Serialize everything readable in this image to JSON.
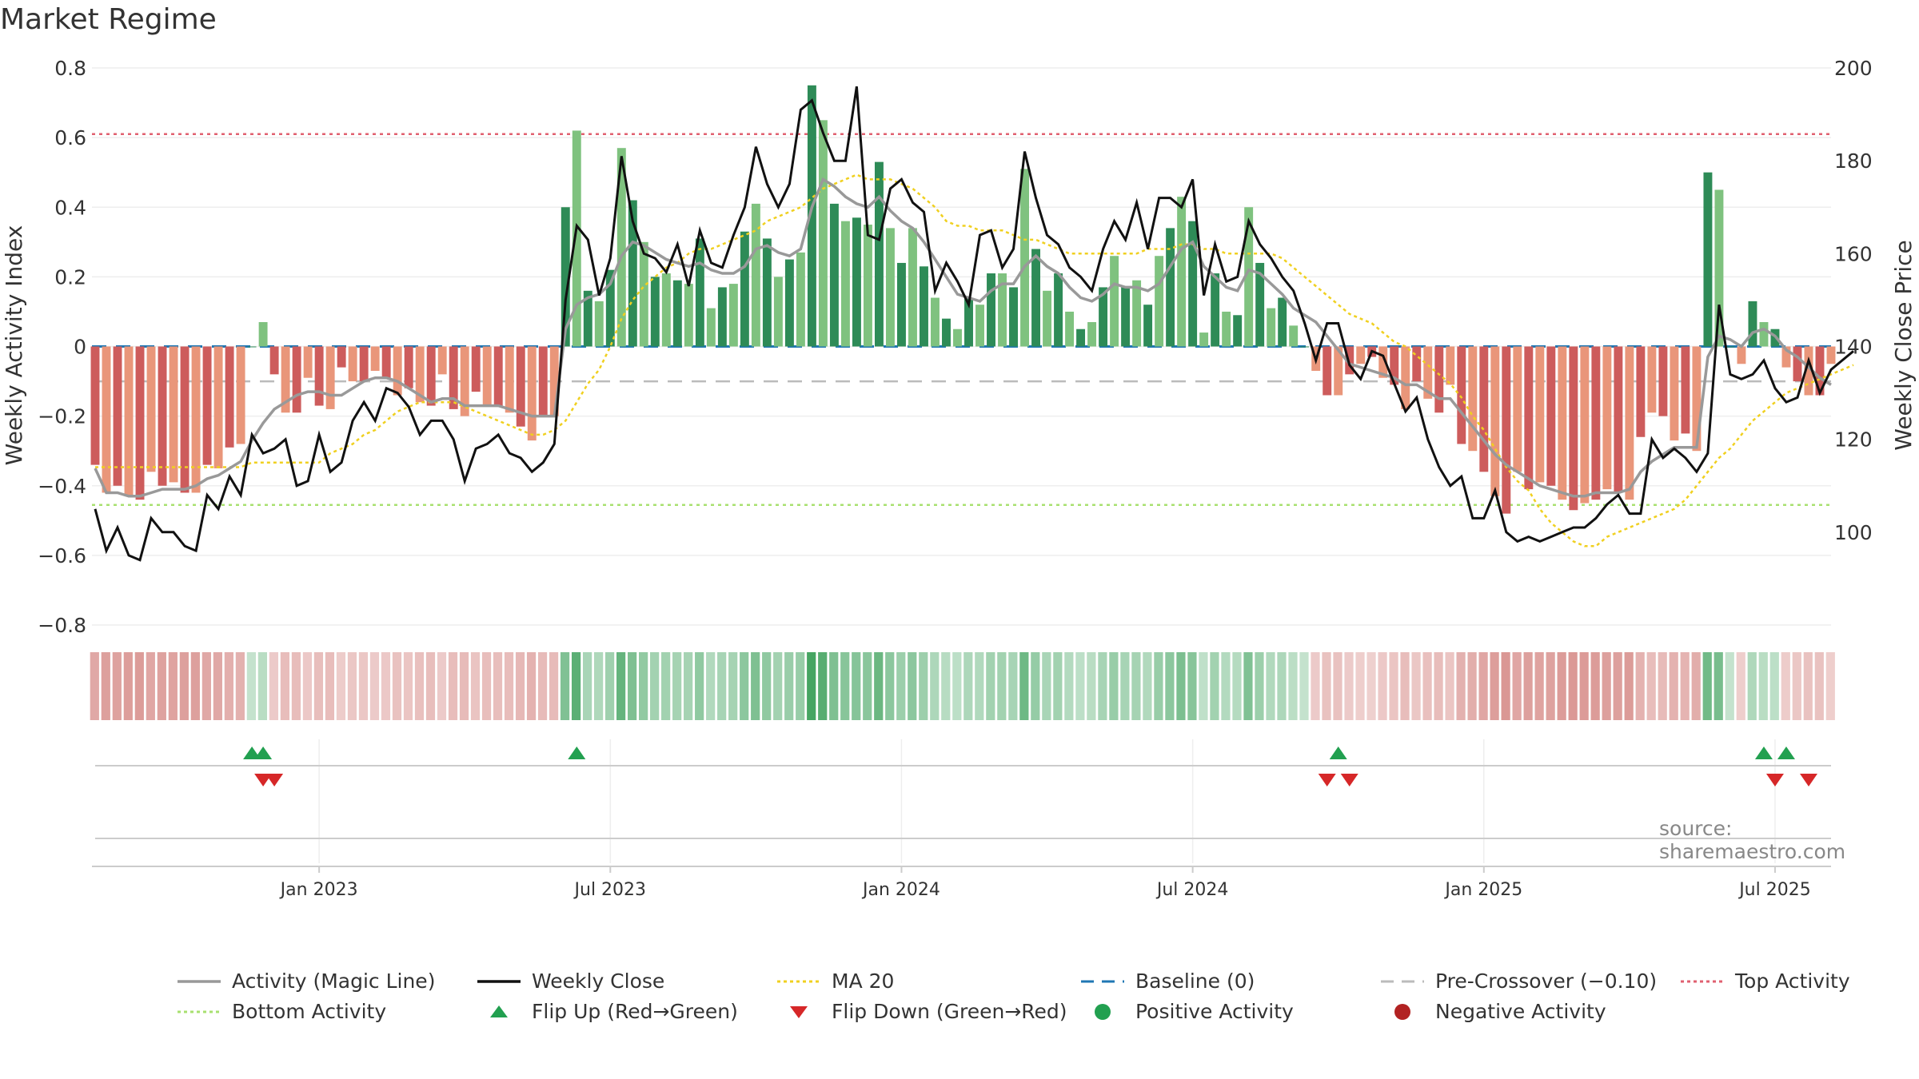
{
  "title": "Market Regime",
  "source": "source: sharemaestro.com",
  "colors": {
    "bar_dark_green": "#2e8b57",
    "bar_light_green": "#7fc27f",
    "bar_dark_red": "#cd5c5c",
    "bar_light_red": "#e9967a",
    "close_line": "#111111",
    "magic_line": "#999999",
    "ma20": "#f0d020",
    "baseline": "#1f77b4",
    "pre_crossover": "#bbbbbb",
    "top_activity": "#e06070",
    "bottom_activity": "#a8e070",
    "flip_up": "#22a050",
    "flip_down": "#d62728"
  },
  "legend": [
    {
      "label": "Activity (Magic Line)",
      "kind": "line",
      "color": "#999999"
    },
    {
      "label": "Weekly Close",
      "kind": "line",
      "color": "#111111"
    },
    {
      "label": "MA 20",
      "kind": "dotted",
      "color": "#f0d020"
    },
    {
      "label": "Baseline (0)",
      "kind": "dashed",
      "color": "#1f77b4"
    },
    {
      "label": "Pre-Crossover (−0.10)",
      "kind": "dashed",
      "color": "#bbbbbb"
    },
    {
      "label": "Top Activity",
      "kind": "dotted",
      "color": "#e06070"
    },
    {
      "label": "Bottom Activity",
      "kind": "dotted",
      "color": "#a8e070"
    },
    {
      "label": "Flip Up (Red→Green)",
      "kind": "tri-up",
      "color": "#22a050"
    },
    {
      "label": "Flip Down (Green→Red)",
      "kind": "tri-down",
      "color": "#d62728"
    },
    {
      "label": "Positive Activity",
      "kind": "dot",
      "color": "#22a050"
    },
    {
      "label": "Negative Activity",
      "kind": "dot",
      "color": "#b22222"
    }
  ],
  "chart_data": {
    "type": "bar",
    "ylabel_left": "Weekly Activity Index",
    "ylabel_right": "Weekly Close Price",
    "ylim_left": [
      -0.8,
      0.8
    ],
    "ylim_right": [
      80,
      200
    ],
    "left_ticks": [
      "0.8",
      "0.6",
      "0.4",
      "0.2",
      "0",
      "−0.2",
      "−0.4",
      "−0.6",
      "−0.8"
    ],
    "right_ticks": [
      "200",
      "180",
      "160",
      "140",
      "120",
      "100"
    ],
    "x_tick_labels": [
      "Jan 2023",
      "Jul 2023",
      "Jan 2024",
      "Jul 2024",
      "Jan 2025",
      "Jul 2025"
    ],
    "x_tick_week_index": [
      20,
      46,
      72,
      98,
      124,
      150
    ],
    "reference_lines": {
      "baseline": 0,
      "pre_crossover": -0.1,
      "top_activity": 0.61,
      "bottom_activity": -0.455
    },
    "activity": [
      -0.34,
      -0.42,
      -0.4,
      -0.43,
      -0.44,
      -0.36,
      -0.4,
      -0.39,
      -0.42,
      -0.42,
      -0.34,
      -0.35,
      -0.29,
      -0.28,
      0.0,
      0.07,
      -0.08,
      -0.19,
      -0.19,
      -0.09,
      -0.17,
      -0.18,
      -0.06,
      -0.1,
      -0.1,
      -0.07,
      -0.09,
      -0.14,
      -0.12,
      -0.16,
      -0.17,
      -0.08,
      -0.18,
      -0.2,
      -0.13,
      -0.17,
      -0.17,
      -0.19,
      -0.23,
      -0.27,
      -0.2,
      -0.2,
      0.4,
      0.62,
      0.16,
      0.13,
      0.22,
      0.57,
      0.42,
      0.3,
      0.2,
      0.21,
      0.19,
      0.18,
      0.31,
      0.11,
      0.17,
      0.18,
      0.33,
      0.41,
      0.31,
      0.2,
      0.25,
      0.27,
      0.75,
      0.65,
      0.41,
      0.36,
      0.37,
      0.35,
      0.53,
      0.34,
      0.24,
      0.34,
      0.23,
      0.14,
      0.08,
      0.05,
      0.14,
      0.12,
      0.21,
      0.21,
      0.17,
      0.51,
      0.28,
      0.16,
      0.21,
      0.1,
      0.05,
      0.07,
      0.17,
      0.26,
      0.17,
      0.19,
      0.12,
      0.26,
      0.34,
      0.43,
      0.36,
      0.04,
      0.21,
      0.1,
      0.09,
      0.4,
      0.24,
      0.11,
      0.14,
      0.06,
      0.0,
      -0.07,
      -0.14,
      -0.14,
      -0.08,
      -0.05,
      -0.03,
      -0.09,
      -0.11,
      -0.18,
      -0.1,
      -0.15,
      -0.19,
      -0.11,
      -0.28,
      -0.3,
      -0.36,
      -0.43,
      -0.48,
      -0.36,
      -0.41,
      -0.39,
      -0.4,
      -0.44,
      -0.47,
      -0.45,
      -0.44,
      -0.41,
      -0.42,
      -0.44,
      -0.26,
      -0.19,
      -0.2,
      -0.27,
      -0.25,
      -0.3,
      0.5,
      0.45,
      0.0,
      -0.05,
      0.13,
      0.07,
      0.05,
      -0.06,
      -0.1,
      -0.14,
      -0.14,
      -0.05
    ],
    "magic_line": [
      -0.35,
      -0.42,
      -0.42,
      -0.43,
      -0.43,
      -0.42,
      -0.41,
      -0.41,
      -0.41,
      -0.4,
      -0.38,
      -0.37,
      -0.35,
      -0.33,
      -0.27,
      -0.22,
      -0.18,
      -0.16,
      -0.14,
      -0.13,
      -0.13,
      -0.14,
      -0.14,
      -0.12,
      -0.1,
      -0.09,
      -0.09,
      -0.1,
      -0.12,
      -0.14,
      -0.16,
      -0.15,
      -0.15,
      -0.17,
      -0.17,
      -0.17,
      -0.17,
      -0.18,
      -0.19,
      -0.2,
      -0.2,
      -0.2,
      0.05,
      0.12,
      0.14,
      0.15,
      0.18,
      0.26,
      0.3,
      0.29,
      0.27,
      0.25,
      0.24,
      0.23,
      0.24,
      0.22,
      0.21,
      0.21,
      0.23,
      0.28,
      0.29,
      0.27,
      0.26,
      0.28,
      0.4,
      0.48,
      0.46,
      0.43,
      0.41,
      0.4,
      0.43,
      0.39,
      0.36,
      0.34,
      0.3,
      0.25,
      0.2,
      0.15,
      0.14,
      0.13,
      0.16,
      0.18,
      0.18,
      0.23,
      0.26,
      0.23,
      0.21,
      0.17,
      0.14,
      0.13,
      0.15,
      0.18,
      0.17,
      0.17,
      0.16,
      0.18,
      0.23,
      0.28,
      0.3,
      0.23,
      0.2,
      0.17,
      0.16,
      0.22,
      0.21,
      0.18,
      0.15,
      0.11,
      0.09,
      0.07,
      0.03,
      -0.01,
      -0.05,
      -0.06,
      -0.07,
      -0.08,
      -0.09,
      -0.11,
      -0.11,
      -0.13,
      -0.15,
      -0.15,
      -0.19,
      -0.23,
      -0.27,
      -0.31,
      -0.34,
      -0.36,
      -0.38,
      -0.4,
      -0.41,
      -0.42,
      -0.43,
      -0.43,
      -0.42,
      -0.42,
      -0.42,
      -0.41,
      -0.36,
      -0.33,
      -0.31,
      -0.29,
      -0.29,
      -0.29,
      -0.03,
      0.03,
      0.02,
      0.0,
      0.04,
      0.05,
      0.03,
      -0.01,
      -0.03,
      -0.06,
      -0.09,
      -0.11
    ],
    "weekly_close": [
      105,
      96,
      101,
      95,
      94,
      103,
      100,
      100,
      97,
      96,
      108,
      105,
      112,
      108,
      121,
      117,
      118,
      120,
      110,
      111,
      121,
      113,
      115,
      124,
      128,
      124,
      131,
      130,
      127,
      121,
      124,
      124,
      120,
      111,
      118,
      119,
      121,
      117,
      116,
      113,
      115,
      119,
      150,
      166,
      163,
      151,
      159,
      181,
      167,
      160,
      159,
      156,
      162,
      153,
      165,
      158,
      157,
      164,
      170,
      183,
      175,
      170,
      175,
      191,
      193,
      186,
      180,
      180,
      196,
      164,
      163,
      174,
      176,
      171,
      169,
      152,
      158,
      154,
      149,
      164,
      165,
      157,
      161,
      182,
      172,
      164,
      162,
      157,
      155,
      152,
      161,
      167,
      163,
      171,
      161,
      172,
      172,
      170,
      176,
      151,
      162,
      154,
      155,
      167,
      162,
      159,
      155,
      152,
      145,
      137,
      145,
      145,
      136,
      133,
      139,
      138,
      132,
      126,
      129,
      120,
      114,
      110,
      112,
      103,
      103,
      109,
      100,
      98,
      99,
      98,
      99,
      100,
      101,
      101,
      103,
      106,
      108,
      104,
      104,
      120,
      116,
      118,
      116,
      113,
      117,
      149,
      134,
      133,
      134,
      137,
      131,
      128,
      129,
      137,
      130,
      135,
      137,
      139
    ],
    "ma20": [
      114,
      114,
      114,
      114,
      114,
      114,
      114,
      114,
      114,
      114,
      114,
      114,
      114,
      114,
      115,
      115,
      115,
      115,
      115,
      115,
      115,
      117,
      118,
      119,
      121,
      122,
      124,
      126,
      127,
      128,
      128,
      128,
      128,
      127,
      126,
      125,
      124,
      123,
      122,
      121,
      121,
      122,
      124,
      128,
      132,
      135,
      140,
      146,
      150,
      153,
      155,
      157,
      158,
      160,
      161,
      161,
      162,
      163,
      164,
      165,
      167,
      168,
      169,
      170,
      172,
      174,
      175,
      176,
      177,
      176,
      176,
      176,
      175,
      174,
      172,
      170,
      167,
      166,
      166,
      165,
      165,
      165,
      164,
      163,
      163,
      162,
      161,
      160,
      160,
      160,
      160,
      160,
      160,
      160,
      161,
      161,
      161,
      162,
      162,
      161,
      161,
      160,
      160,
      160,
      160,
      160,
      159,
      157,
      155,
      153,
      151,
      149,
      147,
      146,
      145,
      143,
      141,
      140,
      138,
      136,
      134,
      132,
      129,
      125,
      122,
      118,
      114,
      111,
      109,
      105,
      102,
      100,
      98,
      97,
      97,
      99,
      100,
      101,
      102,
      103,
      104,
      105,
      107,
      110,
      113,
      116,
      118,
      121,
      124,
      126,
      128,
      130,
      131,
      132,
      133,
      134,
      135,
      136
    ],
    "flips_up_week": [
      14,
      15,
      43,
      111,
      149,
      151
    ],
    "flips_down_week": [
      15,
      16,
      110,
      112,
      150,
      153
    ]
  }
}
